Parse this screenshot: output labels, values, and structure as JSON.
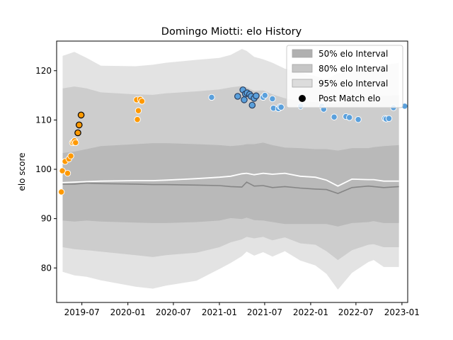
{
  "chart_data": {
    "type": "scatter",
    "title": "Domingo Miotti: elo History",
    "xlabel": "",
    "ylabel": "elo score",
    "xlim": [
      "2019-03-22",
      "2023-01-24"
    ],
    "ylim": [
      73,
      126
    ],
    "x_ticks": [
      "2019-07",
      "2020-01",
      "2020-07",
      "2021-01",
      "2021-07",
      "2022-01",
      "2022-07",
      "2023-01"
    ],
    "y_ticks": [
      80,
      90,
      100,
      110,
      120
    ],
    "grid": false,
    "legend_position": "top-right",
    "legend": [
      {
        "label": "50% elo Interval",
        "color": "#b0b0b0"
      },
      {
        "label": "80% elo Interval",
        "color": "#c6c6c6"
      },
      {
        "label": "95% elo Interval",
        "color": "#dcdcdc"
      },
      {
        "label": "Post Match elo",
        "color": "#000000"
      }
    ],
    "bands": {
      "dates": [
        "2019-04-15",
        "2019-06-01",
        "2019-07-20",
        "2019-09-15",
        "2020-02-01",
        "2020-04-10",
        "2020-06-01",
        "2020-10-01",
        "2021-01-01",
        "2021-02-15",
        "2021-04-01",
        "2021-04-20",
        "2021-05-20",
        "2021-06-25",
        "2021-08-01",
        "2021-09-20",
        "2021-11-20",
        "2022-01-20",
        "2022-03-05",
        "2022-04-20",
        "2022-06-15",
        "2022-08-20",
        "2022-09-10",
        "2022-10-20",
        "2022-12-20"
      ],
      "p95_low": [
        79.2,
        78.5,
        78.2,
        77.5,
        76.2,
        75.8,
        76.4,
        77.4,
        79.8,
        81.0,
        82.4,
        83.3,
        82.5,
        83.2,
        82.3,
        83.4,
        81.5,
        80.5,
        78.8,
        75.6,
        79.0,
        81.2,
        81.6,
        80.2,
        80.2
      ],
      "p95_high": [
        123.0,
        123.8,
        122.6,
        121.0,
        120.9,
        121.2,
        121.6,
        122.2,
        122.6,
        123.2,
        124.4,
        124.0,
        122.8,
        122.3,
        121.6,
        120.4,
        119.6,
        118.9,
        118.2,
        119.5,
        119.8,
        120.0,
        120.3,
        121.1,
        121.6
      ],
      "p80_low": [
        84.2,
        83.8,
        83.6,
        83.3,
        82.6,
        82.2,
        82.6,
        83.1,
        84.2,
        85.2,
        85.8,
        86.3,
        86.0,
        86.3,
        85.6,
        86.2,
        85.0,
        84.7,
        83.4,
        81.6,
        83.6,
        84.7,
        84.8,
        84.2,
        84.2
      ],
      "p80_high": [
        116.4,
        116.8,
        116.4,
        115.6,
        115.2,
        115.1,
        115.4,
        115.8,
        116.2,
        116.6,
        116.9,
        116.6,
        115.9,
        116.0,
        115.2,
        114.4,
        113.8,
        113.6,
        113.3,
        113.4,
        114.4,
        114.7,
        114.9,
        114.9,
        115.0
      ],
      "p50_low": [
        89.6,
        89.4,
        89.6,
        89.4,
        89.2,
        89.1,
        89.1,
        89.3,
        89.6,
        90.1,
        89.9,
        90.2,
        89.7,
        89.6,
        89.3,
        88.9,
        88.9,
        88.9,
        88.9,
        88.4,
        89.1,
        89.3,
        89.5,
        89.1,
        89.1
      ],
      "p50_high": [
        103.3,
        103.6,
        104.1,
        104.7,
        105.1,
        105.3,
        105.3,
        105.1,
        104.9,
        104.7,
        104.9,
        105.1,
        105.1,
        105.4,
        104.9,
        104.4,
        104.3,
        104.1,
        104.1,
        103.8,
        104.3,
        104.3,
        104.5,
        104.7,
        104.9
      ],
      "median": [
        97.3,
        97.4,
        97.5,
        97.6,
        97.7,
        97.7,
        97.8,
        98.1,
        98.4,
        98.6,
        99.1,
        99.2,
        98.9,
        99.2,
        99.0,
        99.2,
        98.6,
        98.4,
        97.8,
        96.6,
        98.0,
        97.9,
        97.9,
        97.6,
        97.6
      ],
      "mean": [
        97.0,
        97.0,
        97.2,
        97.1,
        97.0,
        96.9,
        96.9,
        96.8,
        96.7,
        96.5,
        96.4,
        97.4,
        96.6,
        96.7,
        96.3,
        96.5,
        96.2,
        96.0,
        95.9,
        95.1,
        96.3,
        96.6,
        96.5,
        96.3,
        96.5
      ]
    },
    "series": [
      {
        "group": "orange",
        "color": "#ff9900",
        "points": [
          {
            "x": "2019-04-10",
            "y": 95.4
          },
          {
            "x": "2019-04-14",
            "y": 99.7
          },
          {
            "x": "2019-04-25",
            "y": 101.6
          },
          {
            "x": "2019-05-05",
            "y": 99.2
          },
          {
            "x": "2019-05-10",
            "y": 102.1
          },
          {
            "x": "2019-05-18",
            "y": 102.7
          },
          {
            "x": "2019-05-24",
            "y": 105.4
          },
          {
            "x": "2019-05-28",
            "y": 105.6
          },
          {
            "x": "2019-06-02",
            "y": 105.8
          },
          {
            "x": "2019-06-06",
            "y": 105.4
          },
          {
            "x": "2020-02-05",
            "y": 114.1
          },
          {
            "x": "2020-02-08",
            "y": 110.1
          },
          {
            "x": "2020-02-12",
            "y": 111.9
          },
          {
            "x": "2020-02-20",
            "y": 114.2
          },
          {
            "x": "2020-02-26",
            "y": 113.8
          }
        ]
      },
      {
        "group": "orange-dark-edge",
        "color": "#ff9900",
        "edge": "#000000",
        "points": [
          {
            "x": "2019-06-15",
            "y": 107.4
          },
          {
            "x": "2019-06-20",
            "y": 109.0
          },
          {
            "x": "2019-06-28",
            "y": 111.0
          }
        ]
      },
      {
        "group": "blue",
        "color": "#5aa0dc",
        "points": [
          {
            "x": "2020-12-01",
            "y": 114.6
          },
          {
            "x": "2021-06-25",
            "y": 114.6
          },
          {
            "x": "2021-07-02",
            "y": 115.0
          },
          {
            "x": "2021-08-01",
            "y": 114.3
          },
          {
            "x": "2021-08-05",
            "y": 112.4
          },
          {
            "x": "2021-08-25",
            "y": 112.3
          },
          {
            "x": "2021-09-01",
            "y": 112.7
          },
          {
            "x": "2021-09-05",
            "y": 112.6
          },
          {
            "x": "2021-11-22",
            "y": 112.8
          },
          {
            "x": "2022-02-15",
            "y": 112.8
          },
          {
            "x": "2022-02-22",
            "y": 112.2
          },
          {
            "x": "2022-04-05",
            "y": 110.6
          },
          {
            "x": "2022-05-22",
            "y": 110.7
          },
          {
            "x": "2022-06-05",
            "y": 110.5
          },
          {
            "x": "2022-07-10",
            "y": 110.1
          },
          {
            "x": "2022-10-25",
            "y": 110.3
          },
          {
            "x": "2022-10-30",
            "y": 110.2
          },
          {
            "x": "2022-11-10",
            "y": 110.3
          },
          {
            "x": "2022-11-28",
            "y": 112.5
          },
          {
            "x": "2023-01-12",
            "y": 112.8
          }
        ]
      },
      {
        "group": "blue-dark-edge",
        "color": "#5aa0dc",
        "edge": "#2a3f5f",
        "points": [
          {
            "x": "2021-03-15",
            "y": 114.8
          },
          {
            "x": "2021-04-05",
            "y": 116.1
          },
          {
            "x": "2021-04-10",
            "y": 114.1
          },
          {
            "x": "2021-04-15",
            "y": 115.3
          },
          {
            "x": "2021-04-22",
            "y": 115.5
          },
          {
            "x": "2021-05-02",
            "y": 115.2
          },
          {
            "x": "2021-05-08",
            "y": 114.8
          },
          {
            "x": "2021-05-12",
            "y": 113.0
          },
          {
            "x": "2021-05-20",
            "y": 114.4
          },
          {
            "x": "2021-05-28",
            "y": 114.9
          }
        ]
      }
    ]
  }
}
